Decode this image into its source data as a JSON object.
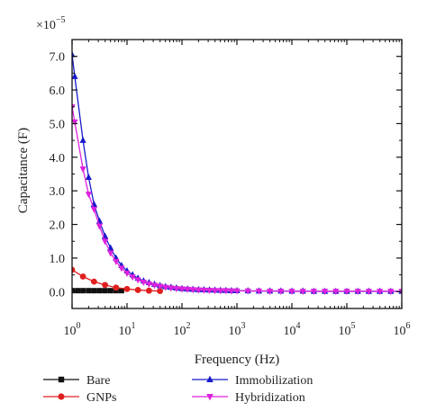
{
  "chart_data": {
    "type": "scatter",
    "xlabel": "Frequency (Hz)",
    "ylabel": "Capacitance (F)",
    "y_multiplier": "×10",
    "y_multiplier_exponent": "−5",
    "x_scale": "log",
    "xlim": [
      1,
      1000000
    ],
    "ylim": [
      -0.5,
      7.5
    ],
    "x_ticks": [
      {
        "value": 1,
        "base": "10",
        "exp": "0"
      },
      {
        "value": 10,
        "base": "10",
        "exp": "1"
      },
      {
        "value": 100,
        "base": "10",
        "exp": "2"
      },
      {
        "value": 1000,
        "base": "10",
        "exp": "3"
      },
      {
        "value": 10000,
        "base": "10",
        "exp": "4"
      },
      {
        "value": 100000,
        "base": "10",
        "exp": "5"
      },
      {
        "value": 1000000,
        "base": "10",
        "exp": "6"
      }
    ],
    "y_ticks": [
      {
        "value": 0.0,
        "label": "0.0"
      },
      {
        "value": 1.0,
        "label": "1.0"
      },
      {
        "value": 2.0,
        "label": "2.0"
      },
      {
        "value": 3.0,
        "label": "3.0"
      },
      {
        "value": 4.0,
        "label": "4.0"
      },
      {
        "value": 5.0,
        "label": "5.0"
      },
      {
        "value": 6.0,
        "label": "6.0"
      },
      {
        "value": 7.0,
        "label": "7.0"
      }
    ],
    "legend_placement": "bottom",
    "grid": false,
    "series": [
      {
        "name": "Bare",
        "marker": "square",
        "color": "#111111",
        "x": [
          1,
          1.26,
          1.58,
          2,
          2.51,
          3.16,
          3.98,
          5.01,
          6.31,
          7.94
        ],
        "y": [
          0.03,
          0.03,
          0.03,
          0.03,
          0.03,
          0.03,
          0.03,
          0.03,
          0.03,
          0.03
        ]
      },
      {
        "name": "GNPs",
        "marker": "circle",
        "color": "#e02020",
        "x": [
          1,
          1.58,
          2.51,
          3.98,
          6.31,
          10,
          15.8,
          25.1,
          39.8
        ],
        "y": [
          0.65,
          0.45,
          0.3,
          0.2,
          0.12,
          0.08,
          0.05,
          0.03,
          0.02
        ]
      },
      {
        "name": "Immobilization",
        "marker": "triangle-up",
        "color": "#1a1acc",
        "x": [
          1,
          1.12,
          1.58,
          2,
          2.51,
          3.16,
          3.98,
          5.01,
          6.31,
          7.94,
          10,
          12.6,
          15.8,
          20,
          25.1,
          31.6,
          39.8,
          50.1,
          63.1,
          79.4,
          100,
          126,
          158,
          200,
          251,
          316,
          398,
          501,
          631,
          794,
          1000,
          1585,
          2512,
          3981,
          6310,
          10000,
          15849,
          25119,
          39811,
          63096,
          100000,
          158489,
          251189,
          398107,
          630957,
          1000000
        ],
        "y": [
          7.05,
          6.4,
          4.5,
          3.4,
          2.6,
          2.1,
          1.65,
          1.3,
          1.0,
          0.78,
          0.62,
          0.5,
          0.4,
          0.32,
          0.27,
          0.22,
          0.18,
          0.15,
          0.13,
          0.11,
          0.09,
          0.08,
          0.07,
          0.06,
          0.055,
          0.05,
          0.045,
          0.04,
          0.035,
          0.03,
          0.03,
          0.025,
          0.02,
          0.02,
          0.02,
          0.015,
          0.015,
          0.01,
          0.01,
          0.01,
          0.01,
          0.01,
          0.01,
          0.01,
          0.01,
          0.01
        ]
      },
      {
        "name": "Hybridization",
        "marker": "triangle-down",
        "color": "#dd22dd",
        "x": [
          1,
          1.12,
          1.58,
          2,
          2.51,
          3.16,
          3.98,
          5.01,
          6.31,
          7.94,
          10,
          12.6,
          15.8,
          20,
          25.1,
          31.6,
          39.8,
          50.1,
          63.1,
          79.4,
          100,
          126,
          158,
          200,
          251,
          316,
          398,
          501,
          631,
          794,
          1000,
          1585,
          2512,
          3981,
          6310,
          10000,
          15849,
          25119,
          39811,
          63096,
          100000,
          158489,
          251189,
          398107,
          630957,
          1000000
        ],
        "y": [
          5.5,
          5.05,
          3.65,
          2.9,
          2.45,
          1.95,
          1.5,
          1.15,
          0.9,
          0.7,
          0.55,
          0.44,
          0.35,
          0.28,
          0.23,
          0.19,
          0.16,
          0.13,
          0.11,
          0.09,
          0.08,
          0.07,
          0.06,
          0.05,
          0.045,
          0.04,
          0.035,
          0.03,
          0.03,
          0.025,
          0.025,
          0.02,
          0.02,
          0.015,
          0.015,
          0.01,
          0.01,
          0.01,
          0.01,
          0.01,
          0.01,
          0.01,
          0.01,
          0.01,
          0.01,
          0.01
        ]
      }
    ]
  }
}
